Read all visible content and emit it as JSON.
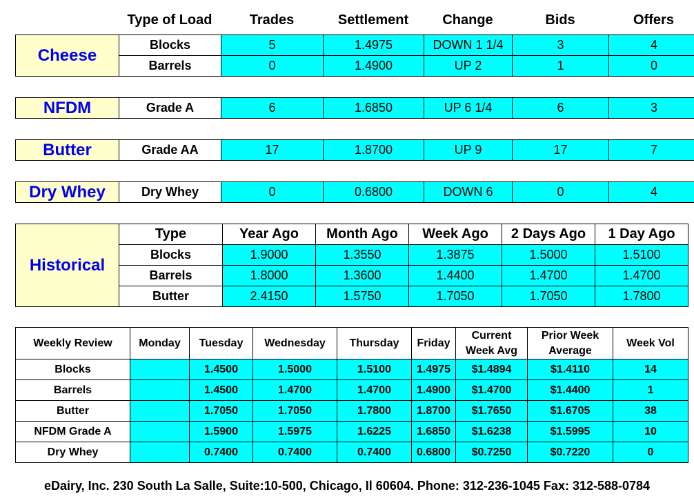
{
  "header": {
    "type_of_load": "Type of Load",
    "trades": "Trades",
    "settlement": "Settlement",
    "change": "Change",
    "bids": "Bids",
    "offers": "Offers"
  },
  "cheese": {
    "label": "Cheese",
    "rows": [
      {
        "type": "Blocks",
        "trades": "5",
        "settlement": "1.4975",
        "change": "DOWN 1 1/4",
        "bids": "3",
        "offers": "4"
      },
      {
        "type": "Barrels",
        "trades": "0",
        "settlement": "1.4900",
        "change": "UP 2",
        "bids": "1",
        "offers": "0"
      }
    ]
  },
  "nfdm": {
    "label": "NFDM",
    "type": "Grade A",
    "trades": "6",
    "settlement": "1.6850",
    "change": "UP 6 1/4",
    "bids": "6",
    "offers": "3"
  },
  "butter": {
    "label": "Butter",
    "type": "Grade AA",
    "trades": "17",
    "settlement": "1.8700",
    "change": "UP 9",
    "bids": "17",
    "offers": "7"
  },
  "drywhey": {
    "label": "Dry Whey",
    "type": "Dry Whey",
    "trades": "0",
    "settlement": "0.6800",
    "change": "DOWN 6",
    "bids": "0",
    "offers": "4"
  },
  "historical": {
    "label": "Historical",
    "headers": [
      "Type",
      "Year Ago",
      "Month Ago",
      "Week Ago",
      "2 Days Ago",
      "1 Day Ago"
    ],
    "rows": [
      [
        "Blocks",
        "1.9000",
        "1.3550",
        "1.3875",
        "1.5000",
        "1.5100"
      ],
      [
        "Barrels",
        "1.8000",
        "1.3600",
        "1.4400",
        "1.4700",
        "1.4700"
      ],
      [
        "Butter",
        "2.4150",
        "1.5750",
        "1.7050",
        "1.7050",
        "1.7800"
      ]
    ]
  },
  "weekly": {
    "headers": [
      "Weekly Review",
      "Monday",
      "Tuesday",
      "Wednesday",
      "Thursday",
      "Friday",
      "Current Week Avg",
      "Prior Week Average",
      "Week Vol"
    ],
    "rows": [
      [
        "Blocks",
        "",
        "1.4500",
        "1.5000",
        "1.5100",
        "1.4975",
        "$1.4894",
        "$1.4110",
        "14"
      ],
      [
        "Barrels",
        "",
        "1.4500",
        "1.4700",
        "1.4700",
        "1.4900",
        "$1.4700",
        "$1.4400",
        "1"
      ],
      [
        "Butter",
        "",
        "1.7050",
        "1.7050",
        "1.7800",
        "1.8700",
        "$1.7650",
        "$1.6705",
        "38"
      ],
      [
        "NFDM Grade A",
        "",
        "1.5900",
        "1.5975",
        "1.6225",
        "1.6850",
        "$1.6238",
        "$1.5995",
        "10"
      ],
      [
        "Dry Whey",
        "",
        "0.7400",
        "0.7400",
        "0.7400",
        "0.6800",
        "$0.7250",
        "$0.7220",
        "0"
      ]
    ]
  },
  "footer": "eDairy, Inc. 230 South La Salle, Suite:10-500, Chicago, Il 60604. Phone: 312-236-1045 Fax: 312-588-0784"
}
